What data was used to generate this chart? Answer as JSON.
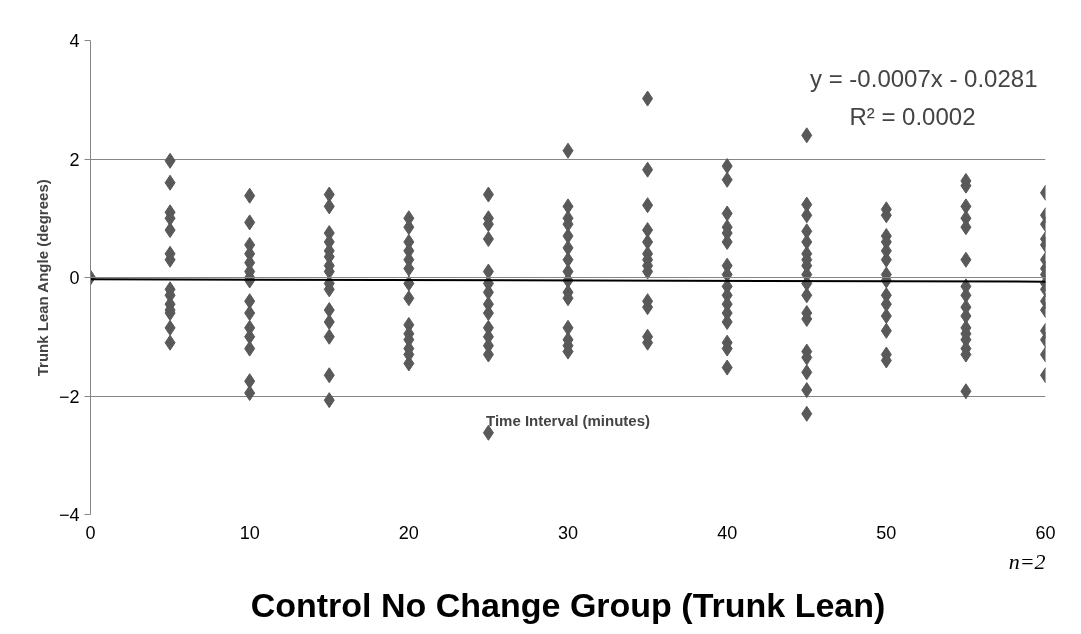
{
  "chart_data": {
    "type": "scatter",
    "title": "Control No Change Group (Trunk Lean)",
    "xlabel": "Time Interval (minutes)",
    "ylabel": "Trunk Lean Angle (degrees)",
    "annotations": [
      "y = -0.0007x - 0.0281",
      "R² = 0.0002",
      "n=2"
    ],
    "xlim": [
      0,
      60
    ],
    "xticks": [
      0,
      10,
      20,
      30,
      40,
      50,
      60
    ],
    "ylim": [
      -4,
      4
    ],
    "yticks": [
      -4,
      -2,
      0,
      2,
      4
    ],
    "grid": "y",
    "marker": "diamond",
    "series": [
      {
        "color": "#595959",
        "x": [
          0,
          5,
          5,
          5,
          5,
          5,
          5,
          5,
          5,
          5,
          5,
          5,
          5,
          5,
          5,
          10,
          10,
          10,
          10,
          10,
          10,
          10,
          10,
          10,
          10,
          10,
          10,
          10,
          10,
          10,
          15,
          15,
          15,
          15,
          15,
          15,
          15,
          15,
          15,
          15,
          15,
          15,
          15,
          15,
          15,
          20,
          20,
          20,
          20,
          20,
          20,
          20,
          20,
          20,
          20,
          20,
          20,
          20,
          20,
          25,
          25,
          25,
          25,
          25,
          25,
          25,
          25,
          25,
          25,
          25,
          25,
          25,
          25,
          30,
          30,
          30,
          30,
          30,
          30,
          30,
          30,
          30,
          30,
          30,
          30,
          30,
          30,
          30,
          35,
          35,
          35,
          35,
          35,
          35,
          35,
          35,
          35,
          35,
          35,
          35,
          35,
          40,
          40,
          40,
          40,
          40,
          40,
          40,
          40,
          40,
          40,
          40,
          40,
          40,
          40,
          40,
          40,
          45,
          45,
          45,
          45,
          45,
          45,
          45,
          45,
          45,
          45,
          45,
          45,
          45,
          45,
          45,
          45,
          45,
          45,
          50,
          50,
          50,
          50,
          50,
          50,
          50,
          50,
          50,
          50,
          50,
          50,
          50,
          50,
          55,
          55,
          55,
          55,
          55,
          55,
          55,
          55,
          55,
          55,
          55,
          55,
          55,
          55,
          55,
          55,
          60,
          60,
          60,
          60,
          60,
          60,
          60,
          60,
          60,
          60,
          60,
          60,
          60,
          60,
          60,
          60
        ],
        "values": [
          0,
          1.97,
          1.6,
          1.1,
          1.0,
          0.8,
          0.4,
          0.3,
          -0.2,
          -0.3,
          -0.45,
          -0.55,
          -0.6,
          -0.85,
          -1.1,
          1.38,
          0.93,
          0.55,
          0.4,
          0.25,
          0.1,
          0.0,
          -0.05,
          -0.4,
          -0.6,
          -0.85,
          -1.0,
          -1.2,
          -1.75,
          -1.95,
          1.4,
          1.2,
          0.75,
          0.6,
          0.45,
          0.35,
          0.2,
          0.1,
          -0.1,
          -0.2,
          -0.55,
          -0.75,
          -1.0,
          -1.65,
          -2.07,
          1.0,
          0.85,
          0.6,
          0.45,
          0.3,
          0.15,
          -0.1,
          -0.35,
          -0.8,
          -0.95,
          -1.05,
          -1.2,
          -1.3,
          -1.45,
          1.4,
          1.0,
          0.9,
          0.65,
          0.1,
          -0.1,
          -0.25,
          -0.45,
          -0.6,
          -0.85,
          -1.0,
          -1.15,
          -1.3,
          -2.62,
          2.14,
          1.2,
          1.0,
          0.9,
          0.7,
          0.5,
          0.3,
          0.1,
          -0.05,
          -0.25,
          -0.35,
          -0.85,
          -1.05,
          -1.15,
          -1.25,
          3.02,
          1.82,
          1.22,
          0.8,
          0.6,
          0.4,
          0.3,
          0.2,
          0.1,
          -0.4,
          -0.5,
          -1.0,
          -1.1,
          1.88,
          1.65,
          1.08,
          0.85,
          0.75,
          0.6,
          0.2,
          0.05,
          -0.15,
          -0.3,
          -0.45,
          -0.6,
          -0.75,
          -1.1,
          -1.2,
          -1.52,
          2.4,
          1.23,
          1.05,
          0.78,
          0.6,
          0.4,
          0.3,
          0.2,
          0.05,
          -0.1,
          -0.3,
          -0.6,
          -0.7,
          -1.25,
          -1.35,
          -1.6,
          -1.9,
          -2.3,
          1.15,
          1.05,
          0.7,
          0.6,
          0.45,
          0.3,
          0.05,
          -0.05,
          -0.3,
          -0.45,
          -0.65,
          -0.9,
          -1.3,
          -1.4,
          1.63,
          1.55,
          1.2,
          1.0,
          0.85,
          0.3,
          -0.15,
          -0.3,
          -0.5,
          -0.65,
          -0.85,
          -0.95,
          -1.05,
          -1.2,
          -1.3,
          -1.92,
          1.43,
          1.05,
          0.9,
          0.65,
          0.55,
          0.3,
          0.15,
          0.05,
          -0.1,
          -0.2,
          -0.4,
          -0.55,
          -0.9,
          -1.05,
          -1.3,
          -1.65
        ]
      },
      {
        "type": "line",
        "marker": "none",
        "color": "#000000",
        "x": [
          0,
          60
        ],
        "values": [
          -0.03,
          -0.07
        ]
      }
    ]
  }
}
